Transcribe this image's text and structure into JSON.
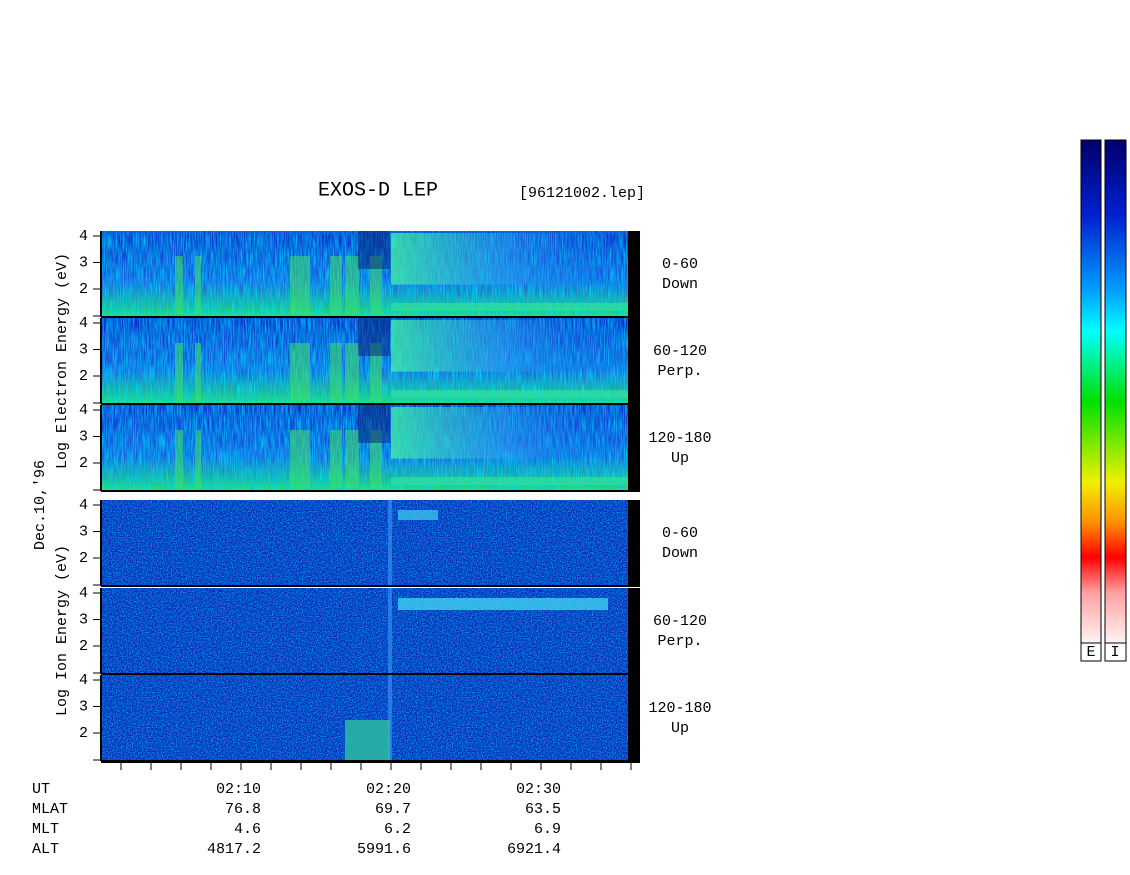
{
  "title": "EXOS-D LEP",
  "file": "[96121002.lep]",
  "date": "Dec.10,'96",
  "groups": [
    {
      "label": "Log  Electron  Energy (eV)",
      "panels": [
        {
          "yticks": [
            "4",
            "3",
            "2"
          ],
          "angle": "0-60",
          "direction": "Down"
        },
        {
          "yticks": [
            "4",
            "3",
            "2"
          ],
          "angle": "60-120",
          "direction": "Perp."
        },
        {
          "yticks": [
            "4",
            "3",
            "2"
          ],
          "angle": "120-180",
          "direction": "Up"
        }
      ]
    },
    {
      "label": "Log  Ion  Energy (eV)",
      "panels": [
        {
          "yticks": [
            "4",
            "3",
            "2"
          ],
          "angle": "0-60",
          "direction": "Down"
        },
        {
          "yticks": [
            "4",
            "3",
            "2"
          ],
          "angle": "60-120",
          "direction": "Perp."
        },
        {
          "yticks": [
            "4",
            "3",
            "2"
          ],
          "angle": "120-180",
          "direction": "Up"
        }
      ]
    }
  ],
  "ephemeris": {
    "rows": [
      {
        "label": "UT",
        "values": [
          "02:10",
          "02:20",
          "02:30"
        ]
      },
      {
        "label": "MLAT",
        "values": [
          "76.8",
          "69.7",
          "63.5"
        ]
      },
      {
        "label": "MLT",
        "values": [
          "4.6",
          "6.2",
          "6.9"
        ]
      },
      {
        "label": "ALT",
        "values": [
          "4817.2",
          "5991.6",
          "6921.4"
        ]
      }
    ]
  },
  "colorbar": {
    "labels": [
      "E",
      "I"
    ]
  }
}
